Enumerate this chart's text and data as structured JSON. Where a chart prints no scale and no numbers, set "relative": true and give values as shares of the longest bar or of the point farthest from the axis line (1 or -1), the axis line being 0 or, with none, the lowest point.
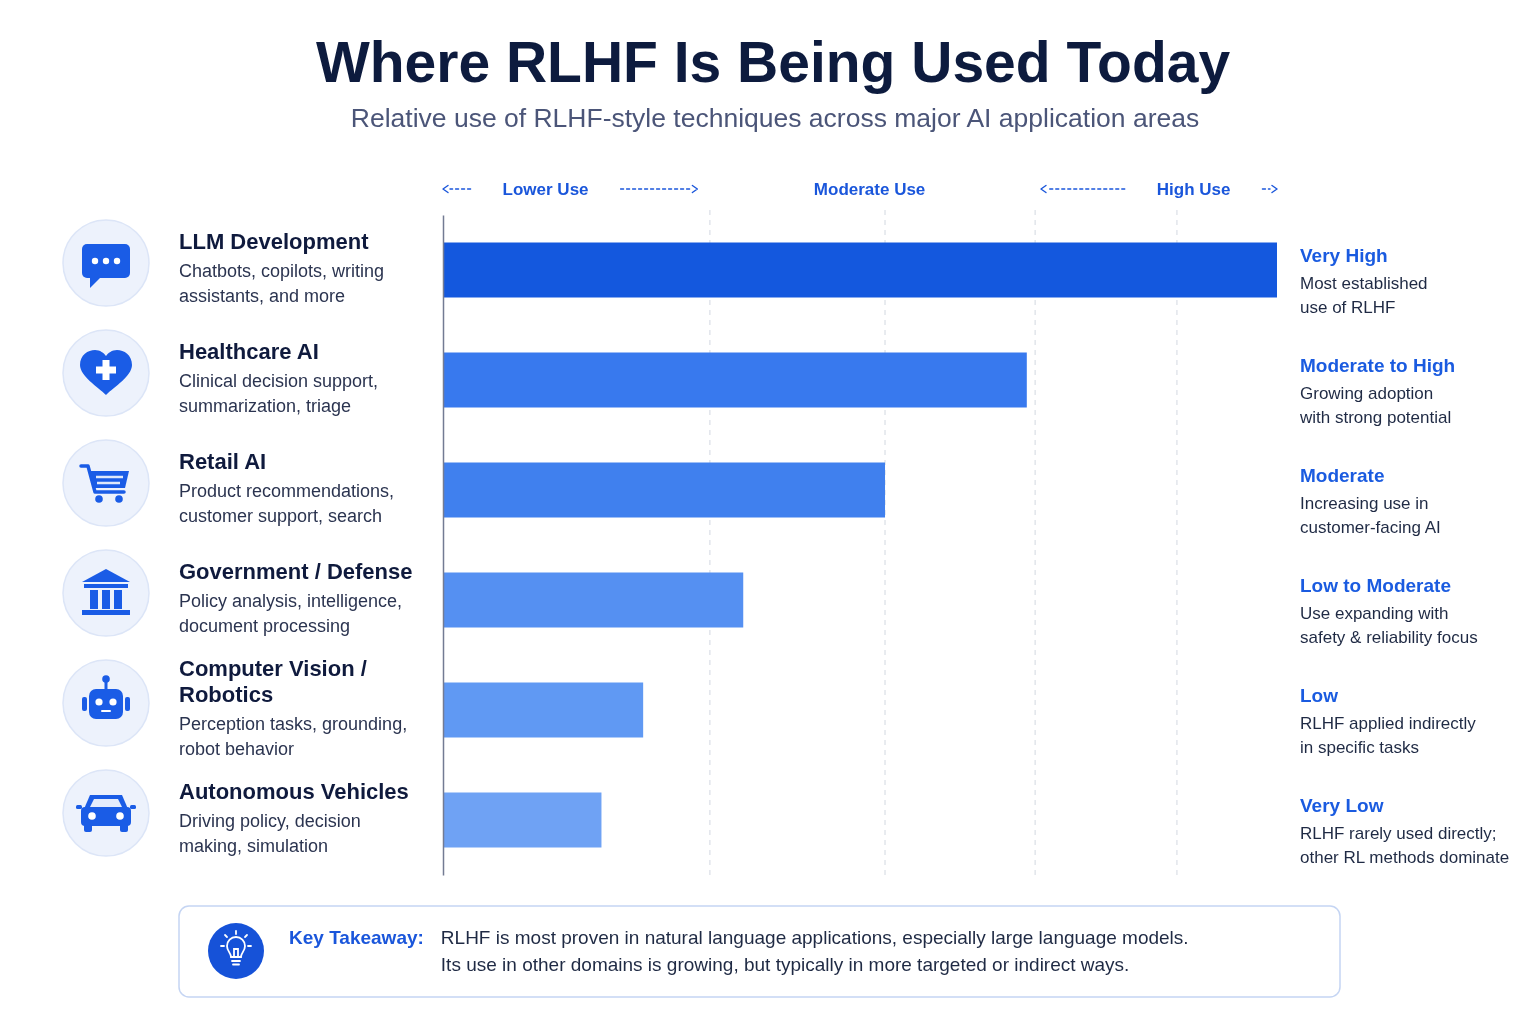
{
  "chart_data": {
    "type": "bar",
    "orientation": "horizontal",
    "relative": true,
    "title": "Where RLHF Is Being Used Today",
    "subtitle": "Relative use of RLHF-style techniques across major AI application areas",
    "categories": [
      "LLM Development",
      "Healthcare AI",
      "Retail AI",
      "Government / Defense",
      "Computer Vision / Robotics",
      "Autonomous Vehicles"
    ],
    "values": [
      1,
      0.7,
      0.53,
      0.36,
      0.24,
      0.19
    ],
    "colors": [
      "#1458de",
      "#3879ee",
      "#4080ee",
      "#5590f2",
      "#6099f3",
      "#6fa2f4"
    ],
    "annotations": [
      "Lower Use",
      "Moderate Use",
      "High Use",
      "Chatbots, copilots, writing\nassistants, and more",
      "Very High",
      "Most established\nuse of RLHF",
      "Clinical decision support,\nsummarization, triage",
      "Moderate to High",
      "Growing adoption\nwith strong potential",
      "Product recommendations,\ncustomer support, search",
      "Moderate",
      "Increasing use in\ncustomer-facing AI",
      "Policy analysis, intelligence,\ndocument processing",
      "Low to Moderate",
      "Use expanding with\nsafety & reliability focus",
      "Perception tasks, grounding,\nrobot behavior",
      "Low",
      "RLHF applied indirectly\nin specific tasks",
      "Driving policy, decision\nmaking, simulation",
      "Very Low",
      "RLHF rarely used directly;\nother RL methods dominate",
      "Key Takeaway:",
      "RLHF is most proven in natural language applications, especially large language models.\nIts use in other domains is growing, but typically in more targeted or indirect ways."
    ],
    "ref_lines": [
      {
        "axis": "x",
        "value": 0.32,
        "color": "#dde1e8",
        "line_style": "dashed"
      },
      {
        "axis": "x",
        "value": 0.53,
        "color": "#dde1e8",
        "line_style": "dashed"
      },
      {
        "axis": "x",
        "value": 0.71,
        "color": "#dde1e8",
        "line_style": "dashed"
      },
      {
        "axis": "x",
        "value": 0.88,
        "color": "#dde1e8",
        "line_style": "dashed"
      }
    ]
  }
}
